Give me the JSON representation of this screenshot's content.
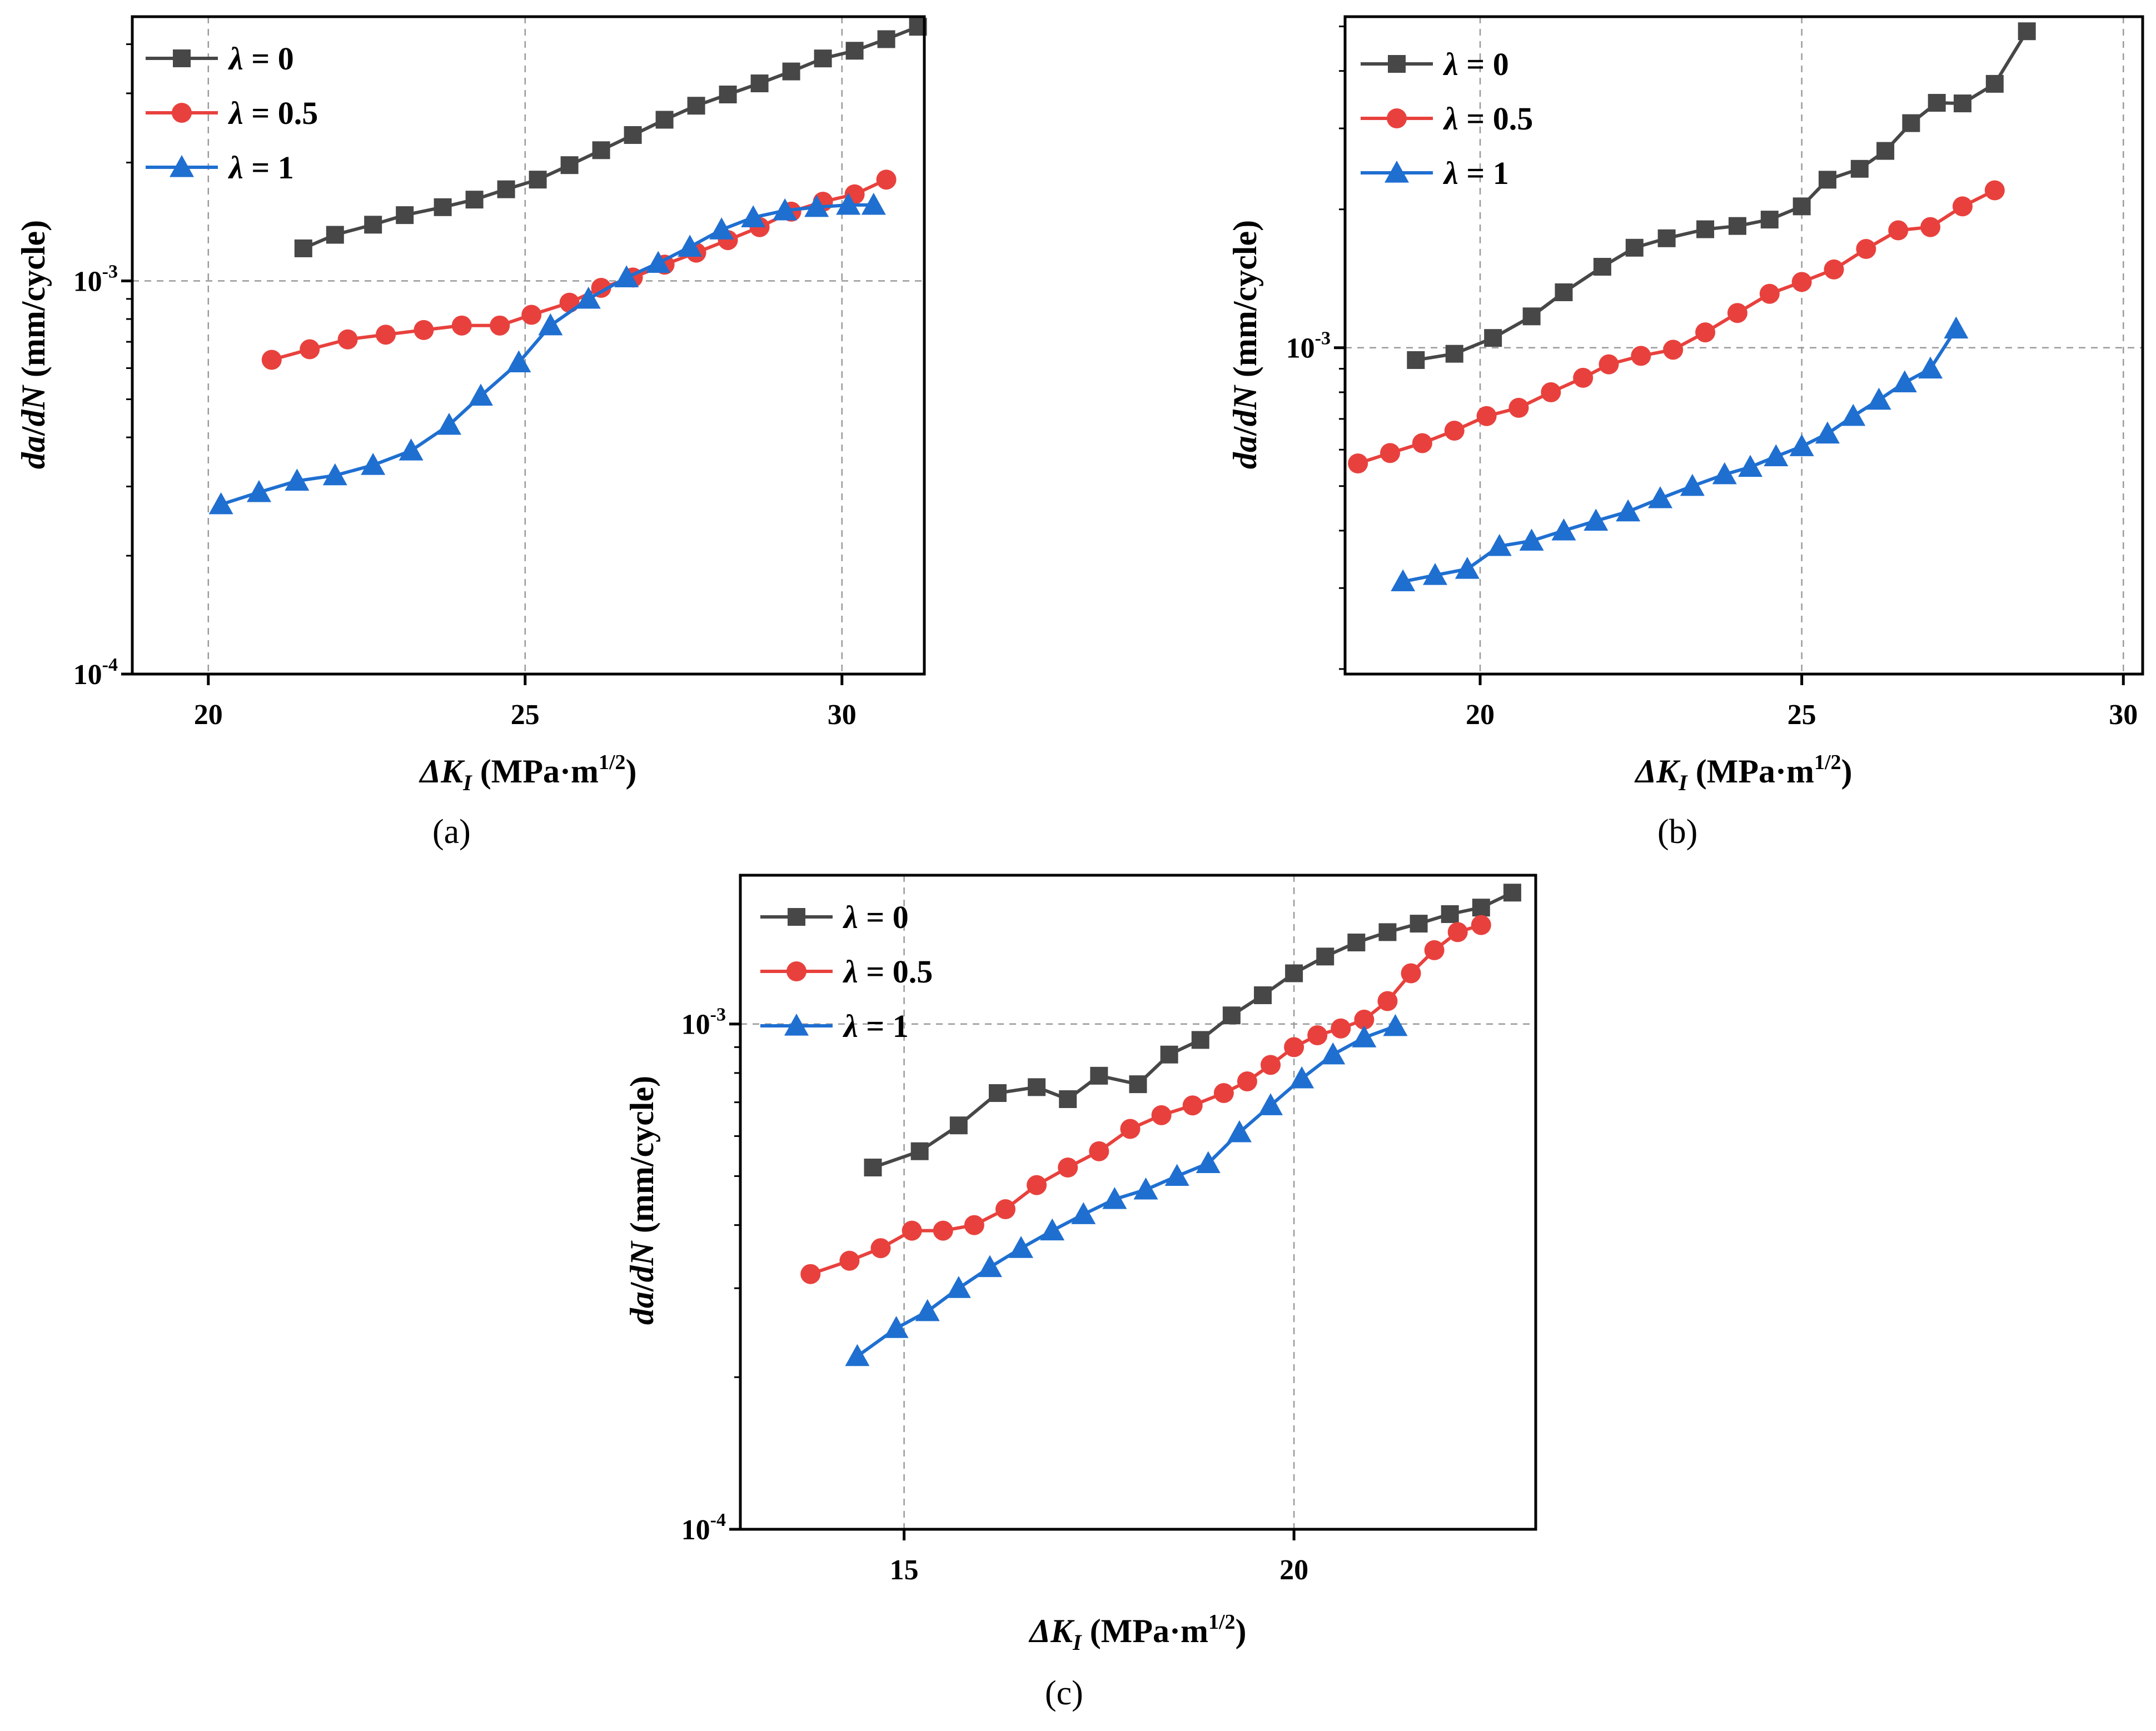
{
  "figure": {
    "captions": [
      "(a)",
      "(b)",
      "(c)"
    ]
  },
  "chart_data": [
    {
      "id": "a",
      "type": "line",
      "caption": "(a)",
      "xlabel_main": "ΔK",
      "xlabel_sub": "I",
      "xlabel_units": "(MPa·m",
      "xlabel_exp": "1/2",
      "xlabel_close": ")",
      "ylabel_part1": "da",
      "ylabel_part2": "/",
      "ylabel_part3": "dN",
      "ylabel_units": " (mm/cycle)",
      "xlim": [
        18.8,
        31.3
      ],
      "ylim_log": [
        0.0001,
        0.0047
      ],
      "xticks": [
        20,
        25,
        30
      ],
      "xtick_labels": [
        "20",
        "25",
        "30"
      ],
      "yticks": [
        0.0001,
        0.001
      ],
      "ytick_base": [
        "10",
        "10"
      ],
      "ytick_exp": [
        "-4",
        "-3"
      ],
      "grid": true,
      "legend_position": "top-left",
      "series": [
        {
          "name_sym": "λ",
          "name_val": " = 0",
          "marker": "square",
          "color": "#474747",
          "x": [
            21.5,
            22.0,
            22.6,
            23.1,
            23.7,
            24.2,
            24.7,
            25.2,
            25.7,
            26.2,
            26.7,
            27.2,
            27.7,
            28.2,
            28.7,
            29.2,
            29.7,
            30.2,
            30.7,
            31.2
          ],
          "y": [
            0.00121,
            0.00131,
            0.00139,
            0.00147,
            0.00154,
            0.00161,
            0.00171,
            0.00181,
            0.00197,
            0.00215,
            0.00235,
            0.00257,
            0.00279,
            0.00298,
            0.00318,
            0.00341,
            0.00368,
            0.00385,
            0.00412,
            0.00443
          ]
        },
        {
          "name_sym": "λ",
          "name_val": " = 0.5",
          "marker": "circle",
          "color": "#e8413d",
          "x": [
            21.0,
            21.6,
            22.2,
            22.8,
            23.4,
            24.0,
            24.6,
            25.1,
            25.7,
            26.2,
            26.7,
            27.2,
            27.7,
            28.2,
            28.7,
            29.2,
            29.7,
            30.2,
            30.7
          ],
          "y": [
            0.00063,
            0.00067,
            0.00071,
            0.00073,
            0.00075,
            0.00077,
            0.00077,
            0.00082,
            0.00088,
            0.00096,
            0.00102,
            0.0011,
            0.00118,
            0.00127,
            0.00137,
            0.0015,
            0.00159,
            0.00166,
            0.00181
          ]
        },
        {
          "name_sym": "λ",
          "name_val": " = 1",
          "marker": "triangle",
          "color": "#1f6fd1",
          "x": [
            20.2,
            20.8,
            21.4,
            22.0,
            22.6,
            23.2,
            23.8,
            24.3,
            24.9,
            25.4,
            26.0,
            26.6,
            27.1,
            27.6,
            28.1,
            28.6,
            29.1,
            29.6,
            30.1,
            30.5
          ],
          "y": [
            0.00027,
            0.00029,
            0.00031,
            0.00032,
            0.00034,
            0.00037,
            0.00043,
            0.00051,
            0.00062,
            0.00077,
            0.0009,
            0.00102,
            0.00111,
            0.00122,
            0.00135,
            0.00145,
            0.00151,
            0.00154,
            0.00156,
            0.00156
          ]
        }
      ]
    },
    {
      "id": "b",
      "type": "line",
      "caption": "(b)",
      "xlabel_main": "ΔK",
      "xlabel_sub": "I",
      "xlabel_units": "(MPa·m",
      "xlabel_exp": "1/2",
      "xlabel_close": ")",
      "ylabel_part1": "da",
      "ylabel_part2": "/",
      "ylabel_part3": "dN",
      "ylabel_units": " (mm/cycle)",
      "xlim": [
        17.9,
        30.3
      ],
      "ylim_log": [
        0.000195,
        0.00525
      ],
      "xticks": [
        20,
        25,
        30
      ],
      "xtick_labels": [
        "20",
        "25",
        "30"
      ],
      "yticks": [
        0.001
      ],
      "ytick_base": [
        "10"
      ],
      "ytick_exp": [
        "-3"
      ],
      "grid": true,
      "legend_position": "top-left",
      "series": [
        {
          "name_sym": "λ",
          "name_val": " = 0",
          "marker": "square",
          "color": "#474747",
          "x": [
            19.0,
            19.6,
            20.2,
            20.8,
            21.3,
            21.9,
            22.4,
            22.9,
            23.5,
            24.0,
            24.5,
            25.0,
            25.4,
            25.9,
            26.3,
            26.7,
            27.1,
            27.5,
            28.0,
            28.5
          ],
          "y": [
            0.00094,
            0.00097,
            0.00105,
            0.00117,
            0.00132,
            0.0015,
            0.00165,
            0.00173,
            0.00181,
            0.00184,
            0.0019,
            0.00203,
            0.00232,
            0.00245,
            0.00268,
            0.00308,
            0.00341,
            0.0034,
            0.00375,
            0.00488
          ]
        },
        {
          "name_sym": "λ",
          "name_val": " = 0.5",
          "marker": "circle",
          "color": "#e8413d",
          "x": [
            18.1,
            18.6,
            19.1,
            19.6,
            20.1,
            20.6,
            21.1,
            21.6,
            22.0,
            22.5,
            23.0,
            23.5,
            24.0,
            24.5,
            25.0,
            25.5,
            26.0,
            26.5,
            27.0,
            27.5,
            28.0
          ],
          "y": [
            0.00056,
            0.00059,
            0.00062,
            0.00066,
            0.00071,
            0.00074,
            0.0008,
            0.00086,
            0.00092,
            0.00096,
            0.00099,
            0.00108,
            0.00119,
            0.00131,
            0.00139,
            0.00148,
            0.00164,
            0.0018,
            0.00183,
            0.00203,
            0.0022
          ]
        },
        {
          "name_sym": "λ",
          "name_val": " = 1",
          "marker": "triangle",
          "color": "#1f6fd1",
          "x": [
            18.8,
            19.3,
            19.8,
            20.3,
            20.8,
            21.3,
            21.8,
            22.3,
            22.8,
            23.3,
            23.8,
            24.2,
            24.6,
            25.0,
            25.4,
            25.8,
            26.2,
            26.6,
            27.0,
            27.4
          ],
          "y": [
            0.00031,
            0.00032,
            0.00033,
            0.00037,
            0.00038,
            0.0004,
            0.00042,
            0.00044,
            0.00047,
            0.0005,
            0.00053,
            0.00055,
            0.00058,
            0.00061,
            0.00065,
            0.00071,
            0.00077,
            0.00084,
            0.0009,
            0.0011
          ]
        }
      ]
    },
    {
      "id": "c",
      "type": "line",
      "caption": "(c)",
      "xlabel_main": "ΔK",
      "xlabel_sub": "I",
      "xlabel_units": "(MPa·m",
      "xlabel_exp": "1/2",
      "xlabel_close": ")",
      "ylabel_part1": "da",
      "ylabel_part2": "/",
      "ylabel_part3": "dN",
      "ylabel_units": " (mm/cycle)",
      "xlim": [
        12.9,
        23.1
      ],
      "ylim_log": [
        0.0001,
        0.00197
      ],
      "xticks": [
        15,
        20
      ],
      "xtick_labels": [
        "15",
        "20"
      ],
      "yticks": [
        0.0001,
        0.001
      ],
      "ytick_base": [
        "10",
        "10"
      ],
      "ytick_exp": [
        "-4",
        "-3"
      ],
      "grid": true,
      "legend_position": "top-left",
      "series": [
        {
          "name_sym": "λ",
          "name_val": " = 0",
          "marker": "square",
          "color": "#474747",
          "x": [
            14.6,
            15.2,
            15.7,
            16.2,
            16.7,
            17.1,
            17.5,
            18.0,
            18.4,
            18.8,
            19.2,
            19.6,
            20.0,
            20.4,
            20.8,
            21.2,
            21.6,
            22.0,
            22.4,
            22.8
          ],
          "y": [
            0.00052,
            0.00056,
            0.00063,
            0.00073,
            0.00075,
            0.00071,
            0.00079,
            0.00076,
            0.00087,
            0.00093,
            0.00104,
            0.00114,
            0.00126,
            0.00136,
            0.00145,
            0.00152,
            0.00158,
            0.00165,
            0.0017,
            0.00182
          ]
        },
        {
          "name_sym": "λ",
          "name_val": " = 0.5",
          "marker": "circle",
          "color": "#e8413d",
          "x": [
            13.8,
            14.3,
            14.7,
            15.1,
            15.5,
            15.9,
            16.3,
            16.7,
            17.1,
            17.5,
            17.9,
            18.3,
            18.7,
            19.1,
            19.4,
            19.7,
            20.0,
            20.3,
            20.6,
            20.9,
            21.2,
            21.5,
            21.8,
            22.1,
            22.4
          ],
          "y": [
            0.00032,
            0.00034,
            0.00036,
            0.00039,
            0.00039,
            0.0004,
            0.00043,
            0.00048,
            0.00052,
            0.00056,
            0.00062,
            0.00066,
            0.00069,
            0.00073,
            0.00077,
            0.00083,
            0.0009,
            0.00095,
            0.00098,
            0.00102,
            0.00111,
            0.00126,
            0.0014,
            0.00152,
            0.00157
          ]
        },
        {
          "name_sym": "λ",
          "name_val": " = 1",
          "marker": "triangle",
          "color": "#1f6fd1",
          "x": [
            14.4,
            14.9,
            15.3,
            15.7,
            16.1,
            16.5,
            16.9,
            17.3,
            17.7,
            18.1,
            18.5,
            18.9,
            19.3,
            19.7,
            20.1,
            20.5,
            20.9,
            21.3
          ],
          "y": [
            0.00022,
            0.00025,
            0.00027,
            0.0003,
            0.00033,
            0.00036,
            0.00039,
            0.00042,
            0.00045,
            0.00047,
            0.0005,
            0.00053,
            0.00061,
            0.00069,
            0.00078,
            0.00087,
            0.00094,
            0.00099
          ]
        }
      ]
    }
  ]
}
